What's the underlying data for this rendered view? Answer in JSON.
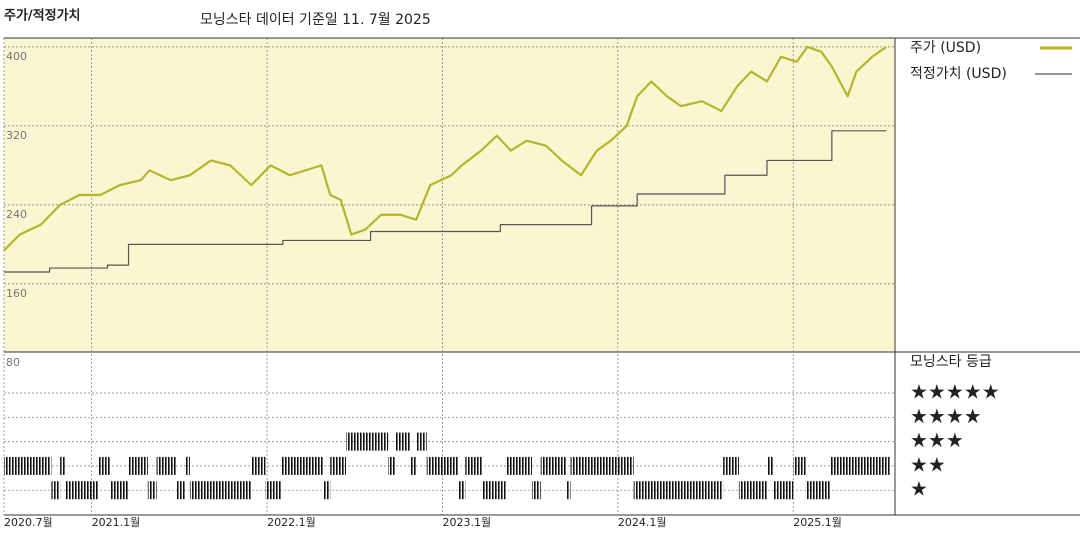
{
  "chart_data": {
    "type": "line",
    "title": "주가/적정가치",
    "subtitle": "모닝스타 데이터 기준일 11. 7월 2025",
    "xlim": [
      2020.5,
      2025.58
    ],
    "xticks": [
      {
        "value": 2020.5,
        "label": "2020.7월"
      },
      {
        "value": 2021.0,
        "label": "2021.1월"
      },
      {
        "value": 2022.0,
        "label": "2022.1월"
      },
      {
        "value": 2023.0,
        "label": "2023.1월"
      },
      {
        "value": 2024.0,
        "label": "2024.1월"
      },
      {
        "value": 2025.0,
        "label": "2025.1월"
      }
    ],
    "ylim": [
      91,
      409
    ],
    "yticks": [
      160,
      240,
      320,
      400
    ],
    "grid": true,
    "series": [
      {
        "name": "주가 (USD)",
        "color": "#b4b62a",
        "x": [
          2020.5,
          2020.59,
          2020.71,
          2020.82,
          2020.93,
          2021.05,
          2021.16,
          2021.28,
          2021.33,
          2021.45,
          2021.56,
          2021.68,
          2021.79,
          2021.91,
          2022.02,
          2022.13,
          2022.31,
          2022.36,
          2022.42,
          2022.48,
          2022.56,
          2022.65,
          2022.76,
          2022.85,
          2022.93,
          2023.05,
          2023.11,
          2023.22,
          2023.31,
          2023.39,
          2023.48,
          2023.59,
          2023.68,
          2023.79,
          2023.88,
          2023.96,
          2024.05,
          2024.11,
          2024.19,
          2024.28,
          2024.36,
          2024.48,
          2024.59,
          2024.68,
          2024.76,
          2024.85,
          2024.93,
          2025.02,
          2025.08,
          2025.16,
          2025.22,
          2025.31,
          2025.36,
          2025.45,
          2025.53
        ],
        "values": [
          194,
          210,
          220,
          240,
          250,
          250,
          260,
          265,
          275,
          265,
          270,
          285,
          280,
          260,
          280,
          270,
          280,
          250,
          245,
          210,
          215,
          230,
          230,
          225,
          260,
          270,
          280,
          295,
          310,
          295,
          305,
          300,
          285,
          270,
          295,
          305,
          320,
          350,
          365,
          350,
          340,
          345,
          335,
          360,
          375,
          365,
          390,
          385,
          400,
          395,
          380,
          350,
          375,
          390,
          400
        ]
      },
      {
        "name": "적정가치 (USD)",
        "color": "#555555",
        "step": "post",
        "x": [
          2020.5,
          2020.76,
          2021.09,
          2021.21,
          2022.09,
          2022.59,
          2023.33,
          2023.85,
          2024.11,
          2024.61,
          2024.85,
          2025.22,
          2025.53
        ],
        "values": [
          172,
          176,
          179,
          200,
          204,
          213,
          220,
          239,
          251,
          270,
          285,
          315,
          315
        ]
      }
    ],
    "ratings": {
      "title": "모닝스타 등급",
      "axis_label": "80",
      "levels": [
        "★★★★★",
        "★★★★",
        "★★★",
        "★★",
        "★"
      ],
      "start": [
        2020.5,
        2020.77,
        2020.82,
        2020.85,
        2021.04,
        2021.11,
        2021.21,
        2021.32,
        2021.37,
        2021.48,
        2021.53,
        2021.56,
        2021.91,
        2021.99,
        2022.08,
        2022.32,
        2022.36,
        2022.45,
        2022.69,
        2022.73,
        2022.82,
        2022.85,
        2022.91,
        2023.09,
        2023.13,
        2023.23,
        2023.36,
        2023.51,
        2023.56,
        2023.71,
        2023.73,
        2024.09,
        2024.6,
        2024.69,
        2024.85,
        2024.89,
        2025.0,
        2025.07,
        2025.21
      ],
      "stars": [
        2,
        1,
        2,
        1,
        2,
        1,
        2,
        1,
        2,
        1,
        2,
        1,
        2,
        1,
        2,
        1,
        2,
        3,
        2,
        3,
        2,
        3,
        2,
        1,
        2,
        1,
        2,
        1,
        2,
        1,
        2,
        1,
        2,
        1,
        2,
        1,
        2,
        1,
        2
      ],
      "end": 2025.55
    }
  }
}
